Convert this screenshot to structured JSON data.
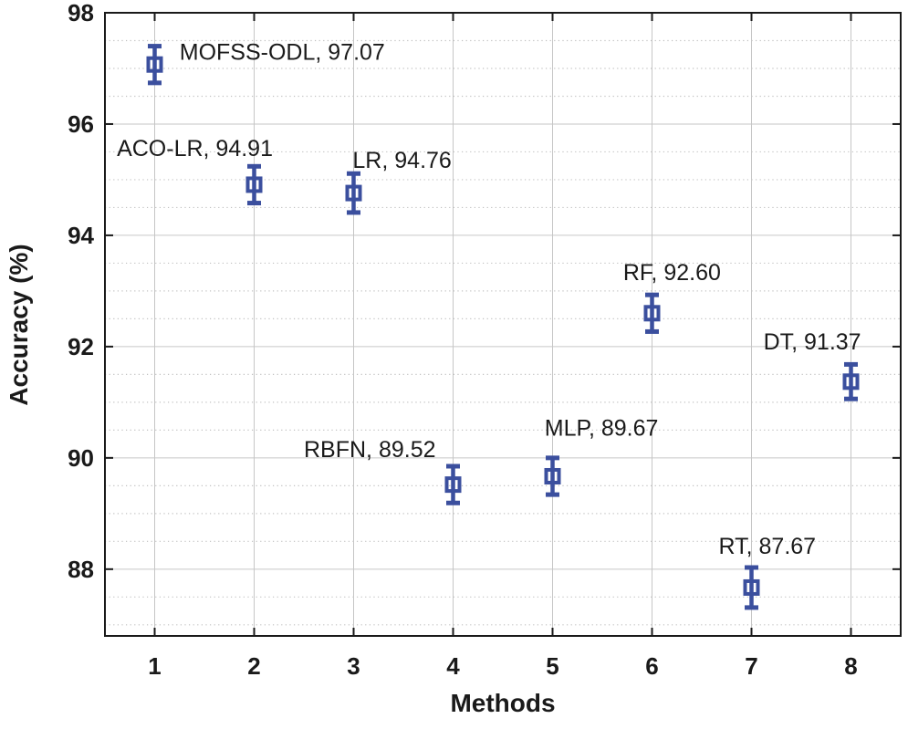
{
  "chart_data": {
    "type": "scatter",
    "title": "",
    "xlabel": "Methods",
    "ylabel": "Accuracy (%)",
    "xlim": [
      0.5,
      8.5
    ],
    "ylim": [
      86.8,
      98
    ],
    "xticks": [
      1,
      2,
      3,
      4,
      5,
      6,
      7,
      8
    ],
    "yticks": [
      88,
      90,
      92,
      94,
      96,
      98
    ],
    "minor_grid_step_y": 0.5,
    "grid": true,
    "legend": "none",
    "marker": {
      "shape": "open-square-with-error-bars",
      "color": "#3b4f9e"
    },
    "points": [
      {
        "x": 1,
        "method": "MOFSS-ODL",
        "y": 97.07,
        "yerr": 0.33,
        "label": "MOFSS-ODL, 97.07",
        "label_x": 1.25,
        "label_y": 97.3
      },
      {
        "x": 2,
        "method": "ACO-LR",
        "y": 94.91,
        "yerr": 0.33,
        "label": "ACO-LR, 94.91",
        "label_x": 0.62,
        "label_y": 95.57
      },
      {
        "x": 3,
        "method": "LR",
        "y": 94.76,
        "yerr": 0.35,
        "label": "LR, 94.76",
        "label_x": 2.99,
        "label_y": 95.36
      },
      {
        "x": 4,
        "method": "RBFN",
        "y": 89.52,
        "yerr": 0.33,
        "label": "RBFN, 89.52",
        "label_x": 2.5,
        "label_y": 90.16
      },
      {
        "x": 5,
        "method": "MLP",
        "y": 89.67,
        "yerr": 0.33,
        "label": "MLP, 89.67",
        "label_x": 4.92,
        "label_y": 90.55
      },
      {
        "x": 6,
        "method": "RF",
        "y": 92.6,
        "yerr": 0.33,
        "label": "RF, 92.60",
        "label_x": 5.71,
        "label_y": 93.34
      },
      {
        "x": 7,
        "method": "RT",
        "y": 87.67,
        "yerr": 0.36,
        "label": "RT, 87.67",
        "label_x": 6.67,
        "label_y": 88.42
      },
      {
        "x": 8,
        "method": "DT",
        "y": 91.37,
        "yerr": 0.31,
        "label": "DT, 91.37",
        "label_x": 7.12,
        "label_y": 92.1
      }
    ]
  },
  "colors": {
    "marker_blue": "#3b4f9e",
    "major_grid": "#c6c6c6",
    "minor_grid": "#c0c0c0",
    "axis": "#1a1a1a",
    "background": "#ffffff"
  }
}
